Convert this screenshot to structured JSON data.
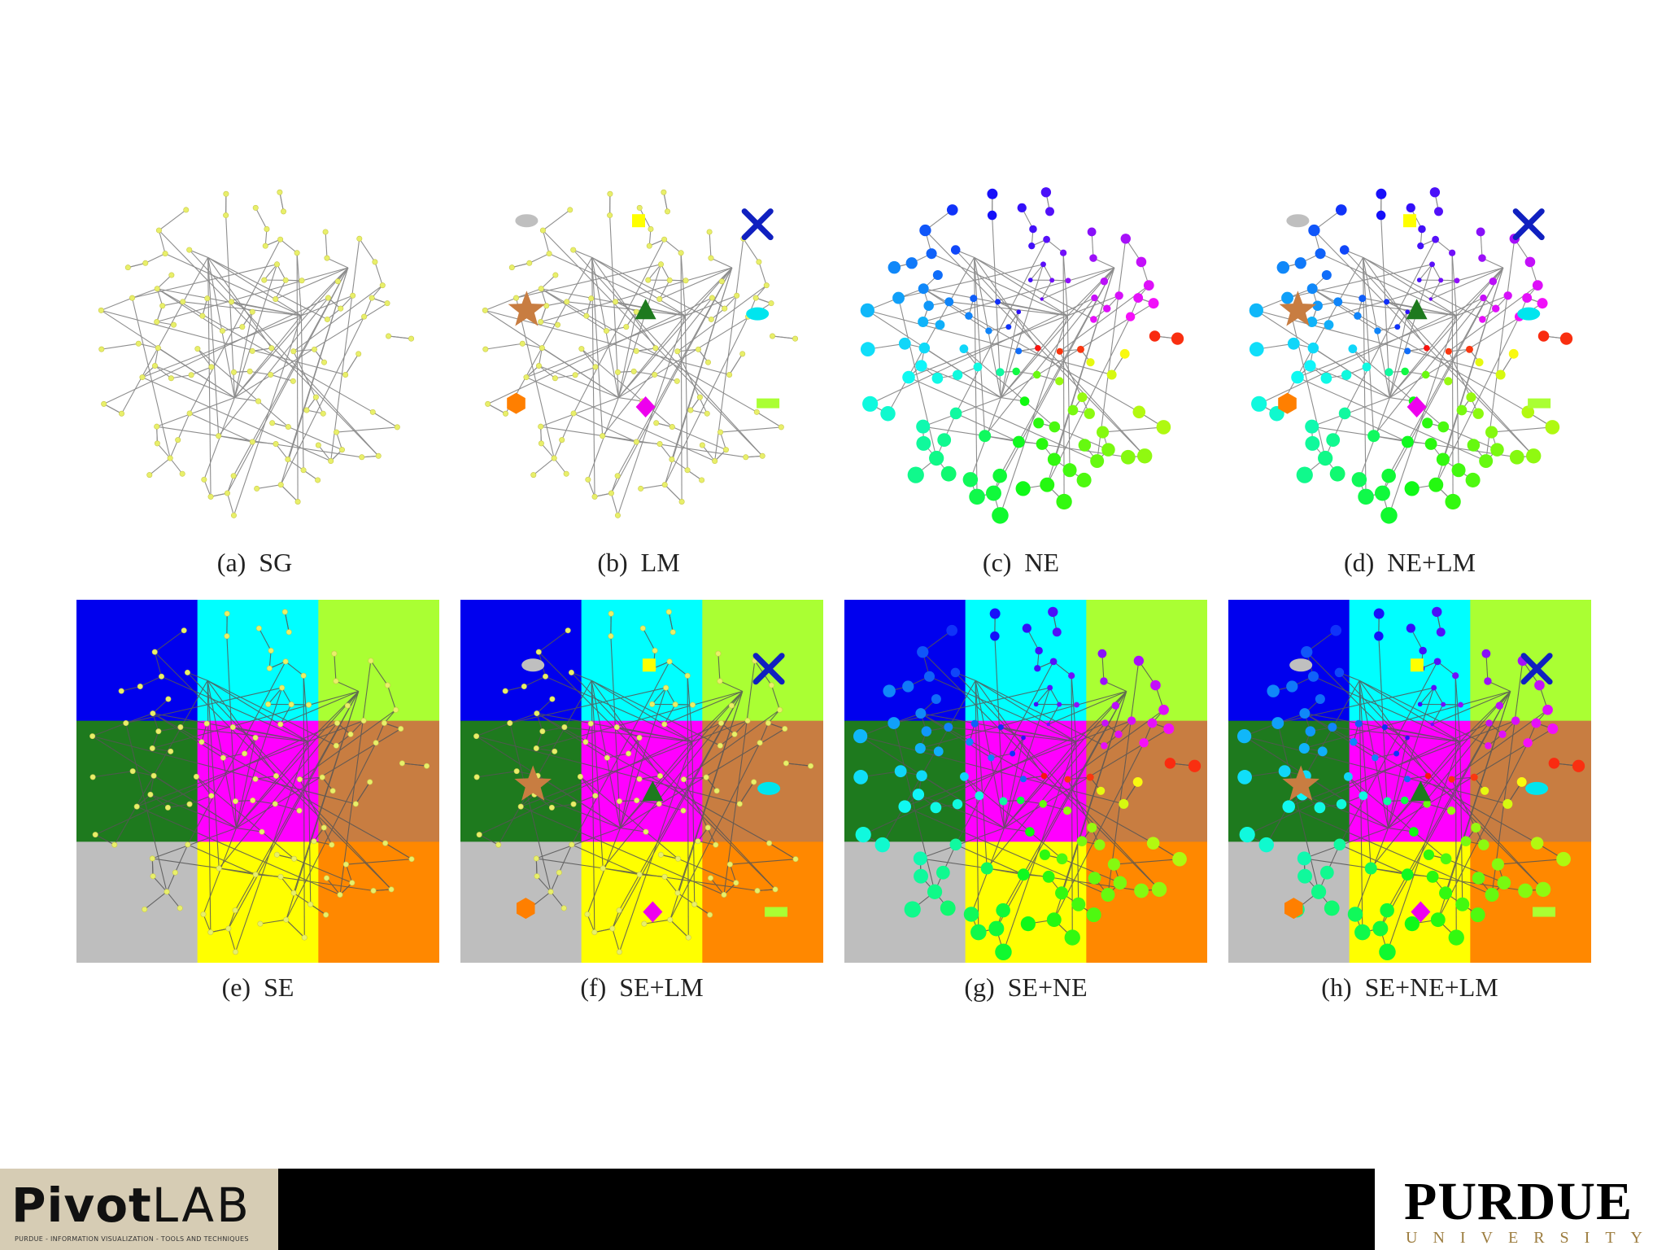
{
  "panels": [
    {
      "id": "a",
      "caption": "(a)  SG",
      "layout": "circle",
      "regions": false,
      "nodeColoring": false,
      "landmarks": false
    },
    {
      "id": "b",
      "caption": "(b)  LM",
      "layout": "circle",
      "regions": false,
      "nodeColoring": false,
      "landmarks": true
    },
    {
      "id": "c",
      "caption": "(c)  NE",
      "layout": "circle",
      "regions": false,
      "nodeColoring": true,
      "landmarks": false
    },
    {
      "id": "d",
      "caption": "(d)  NE+LM",
      "layout": "circle",
      "regions": false,
      "nodeColoring": true,
      "landmarks": true
    },
    {
      "id": "e",
      "caption": "(e)  SE",
      "layout": "grid",
      "regions": true,
      "nodeColoring": false,
      "landmarks": false
    },
    {
      "id": "f",
      "caption": "(f)  SE+LM",
      "layout": "grid",
      "regions": true,
      "nodeColoring": false,
      "landmarks": true
    },
    {
      "id": "g",
      "caption": "(g)  SE+NE",
      "layout": "grid",
      "regions": true,
      "nodeColoring": true,
      "landmarks": false
    },
    {
      "id": "h",
      "caption": "(h)  SE+NE+LM",
      "layout": "grid",
      "regions": true,
      "nodeColoring": true,
      "landmarks": true
    }
  ],
  "regionColors": [
    "#0000ee",
    "#00ffff",
    "#aaff33",
    "#1e7a1e",
    "#ff00ff",
    "#c87d41",
    "#bebebe",
    "#ffff00",
    "#ff8800"
  ],
  "landmarks": [
    {
      "shape": "ellipse",
      "color": "#bfbfbf",
      "icon": "ellipse-landmark"
    },
    {
      "shape": "square",
      "color": "#ffff00",
      "icon": "square-landmark"
    },
    {
      "shape": "x",
      "color": "#1020c0",
      "icon": "x-landmark"
    },
    {
      "shape": "star",
      "color": "#c87d41",
      "icon": "star-landmark"
    },
    {
      "shape": "triangle",
      "color": "#1e7a1e",
      "icon": "triangle-landmark"
    },
    {
      "shape": "ellipse",
      "color": "#00e5ee",
      "icon": "cyan-ellipse-landmark"
    },
    {
      "shape": "hexagon",
      "color": "#ff7f00",
      "icon": "hexagon-landmark"
    },
    {
      "shape": "diamond",
      "color": "#ee00ee",
      "icon": "diamond-landmark"
    },
    {
      "shape": "rect",
      "color": "#aaff33",
      "icon": "rect-landmark"
    }
  ],
  "colors": {
    "edge": "#7a7a7a",
    "plainNode": "#e8ef6a",
    "plainNodeStroke": "#c9c94a"
  },
  "footer": {
    "brand": "Pivot",
    "brandSuffix": "LAB",
    "tagline": "PURDUE - INFORMATION VISUALIZATION - TOOLS AND TECHNIQUES",
    "university": "PURDUE",
    "universityWord": "UNIVERSITY"
  }
}
